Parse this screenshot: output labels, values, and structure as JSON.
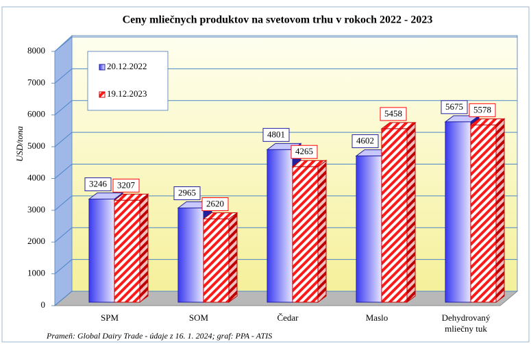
{
  "chart_data": {
    "type": "bar3d",
    "title": "Ceny mliečnych produktov na svetovom trhu v rokoch 2022 - 2023",
    "y_label": "USD/tona",
    "source": "Prameň: Global Dairy Trade - údaje z 16. 1. 2024; graf: PPA - ATIS",
    "categories": [
      "SPM",
      "SOM",
      "Čedar",
      "Maslo",
      "Dehydrovaný mliečny tuk"
    ],
    "series": [
      {
        "name": "20.12.2022",
        "color": "#3a3af0",
        "values": [
          3246,
          2965,
          4801,
          4602,
          5675
        ]
      },
      {
        "name": "19.12.2023",
        "color": "#ff0000",
        "values": [
          3207,
          2620,
          4265,
          5458,
          5578
        ]
      }
    ],
    "ylim": [
      0,
      8000
    ],
    "yticks": [
      0,
      1000,
      2000,
      3000,
      4000,
      5000,
      6000,
      7000,
      8000
    ],
    "grid": true,
    "legend": "top-left"
  }
}
